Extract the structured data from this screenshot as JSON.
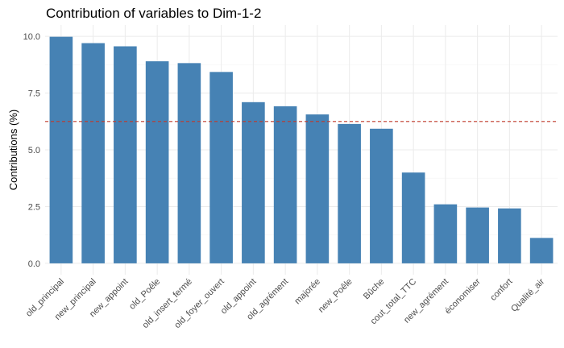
{
  "chart_data": {
    "type": "bar",
    "title": "Contribution of variables to Dim-1-2",
    "xlabel": "",
    "ylabel": "Contributions (%)",
    "categories": [
      "old_principal",
      "new_principal",
      "new_appoint",
      "old_Poêle",
      "old_insert_fermé",
      "old_foyer_ouvert",
      "old_appoint",
      "old_agrément",
      "majorée",
      "new_Poêle",
      "Bûche",
      "cout_total_TTC",
      "new_agrément",
      "économiser",
      "confort",
      "Qualité_air"
    ],
    "values": [
      9.98,
      9.7,
      9.56,
      8.9,
      8.82,
      8.43,
      7.1,
      6.92,
      6.56,
      6.14,
      5.93,
      4.0,
      2.6,
      2.46,
      2.42,
      1.12
    ],
    "yticks": [
      "0.0",
      "2.5",
      "5.0",
      "7.5",
      "10.0"
    ],
    "ylim": [
      -0.5,
      10.5
    ],
    "reference_line": 6.25,
    "bar_color": "#4682B4",
    "reference_line_color": "#C0392B",
    "grid": true
  }
}
